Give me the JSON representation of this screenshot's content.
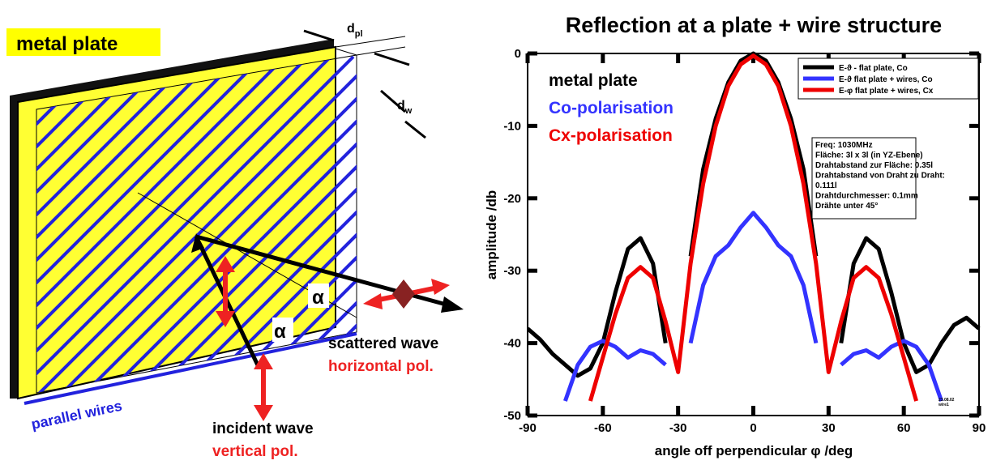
{
  "diagram": {
    "title": "metal plate",
    "d_pl": {
      "main": "d",
      "sub": "pl"
    },
    "d_w": {
      "main": "d",
      "sub": "w"
    },
    "alpha_1": "α",
    "alpha_2": "α",
    "scattered": "scattered wave",
    "scattered_pol": "horizontal pol.",
    "incident": "incident wave",
    "incident_pol": "vertical pol.",
    "wires": "parallel wires"
  },
  "chart_data": {
    "type": "line",
    "title": "Reflection at a plate + wire structure",
    "xlabel": "angle off perpendicular  φ /deg",
    "ylabel": "amplitude  /db",
    "x": [
      -90,
      -85,
      -80,
      -75,
      -70,
      -65,
      -60,
      -55,
      -50,
      -45,
      -40,
      -35,
      -30,
      -25,
      -20,
      -15,
      -10,
      -5,
      0,
      5,
      10,
      15,
      20,
      25,
      30,
      35,
      40,
      45,
      50,
      55,
      60,
      65,
      70,
      75,
      80,
      85,
      90
    ],
    "series": [
      {
        "name": "E-ϑ -  flat plate, Co",
        "color": "#000000",
        "values": [
          -38,
          -39.5,
          -41.5,
          -43,
          -44.5,
          -43.5,
          -40,
          -33,
          -27,
          -25.5,
          -29,
          -40,
          null,
          -28,
          -16,
          -9,
          -4,
          -1,
          0,
          -1,
          -4,
          -9,
          -16,
          -28,
          null,
          -40,
          -29,
          -25.5,
          -27,
          -33,
          -40,
          -44,
          -43,
          -40,
          -37.5,
          -36.5,
          -38
        ]
      },
      {
        "name": "E-ϑ  flat plate + wires, Co",
        "color": "#3333ff",
        "values": [
          null,
          null,
          null,
          -48,
          -43,
          -40.5,
          -39.7,
          -40.5,
          -42,
          -41,
          -41.5,
          -43,
          null,
          -40,
          -32,
          -28,
          -26.5,
          -24,
          -22,
          -24,
          -26.5,
          -28,
          -32,
          -40,
          null,
          -43,
          -41.5,
          -41,
          -42,
          -40.5,
          -39.7,
          -40.5,
          -43,
          -48,
          null,
          null,
          null
        ]
      },
      {
        "name": "E-φ  flat plate + wires, Cx",
        "color": "#ee0000",
        "values": [
          null,
          null,
          null,
          null,
          null,
          -48,
          -42,
          -36,
          -31,
          -29.5,
          -31,
          -37,
          -44,
          -29,
          -18,
          -10,
          -4.5,
          -1.5,
          -0.3,
          -1.5,
          -4.5,
          -10,
          -18,
          -29,
          -44,
          -37,
          -31,
          -29.5,
          -31,
          -36,
          -42,
          -48,
          null,
          null,
          null,
          null,
          null
        ]
      }
    ],
    "xlim": [
      -90,
      90
    ],
    "ylim": [
      -50,
      0
    ],
    "xticks": [
      -90,
      -60,
      -30,
      0,
      30,
      60,
      90
    ],
    "yticks": [
      0,
      -10,
      -20,
      -30,
      -40,
      -50
    ],
    "grid": false,
    "legend": "upper right",
    "annotations": [
      "metal plate",
      "Co-polarisation",
      "Cx-polarisation"
    ],
    "info": [
      "Freq: 1030MHz",
      "Fläche: 3l  x 3l  (in YZ-Ebene)",
      "Drahtabstand zur Fläche: 0.35l",
      "Drahtabstand von Draht zu Draht:",
      " 0.111l",
      "Drahtdurchmesser: 0.1mm",
      "Drähte unter 45°"
    ],
    "stamp": [
      "23.08.02",
      "wire1"
    ]
  }
}
